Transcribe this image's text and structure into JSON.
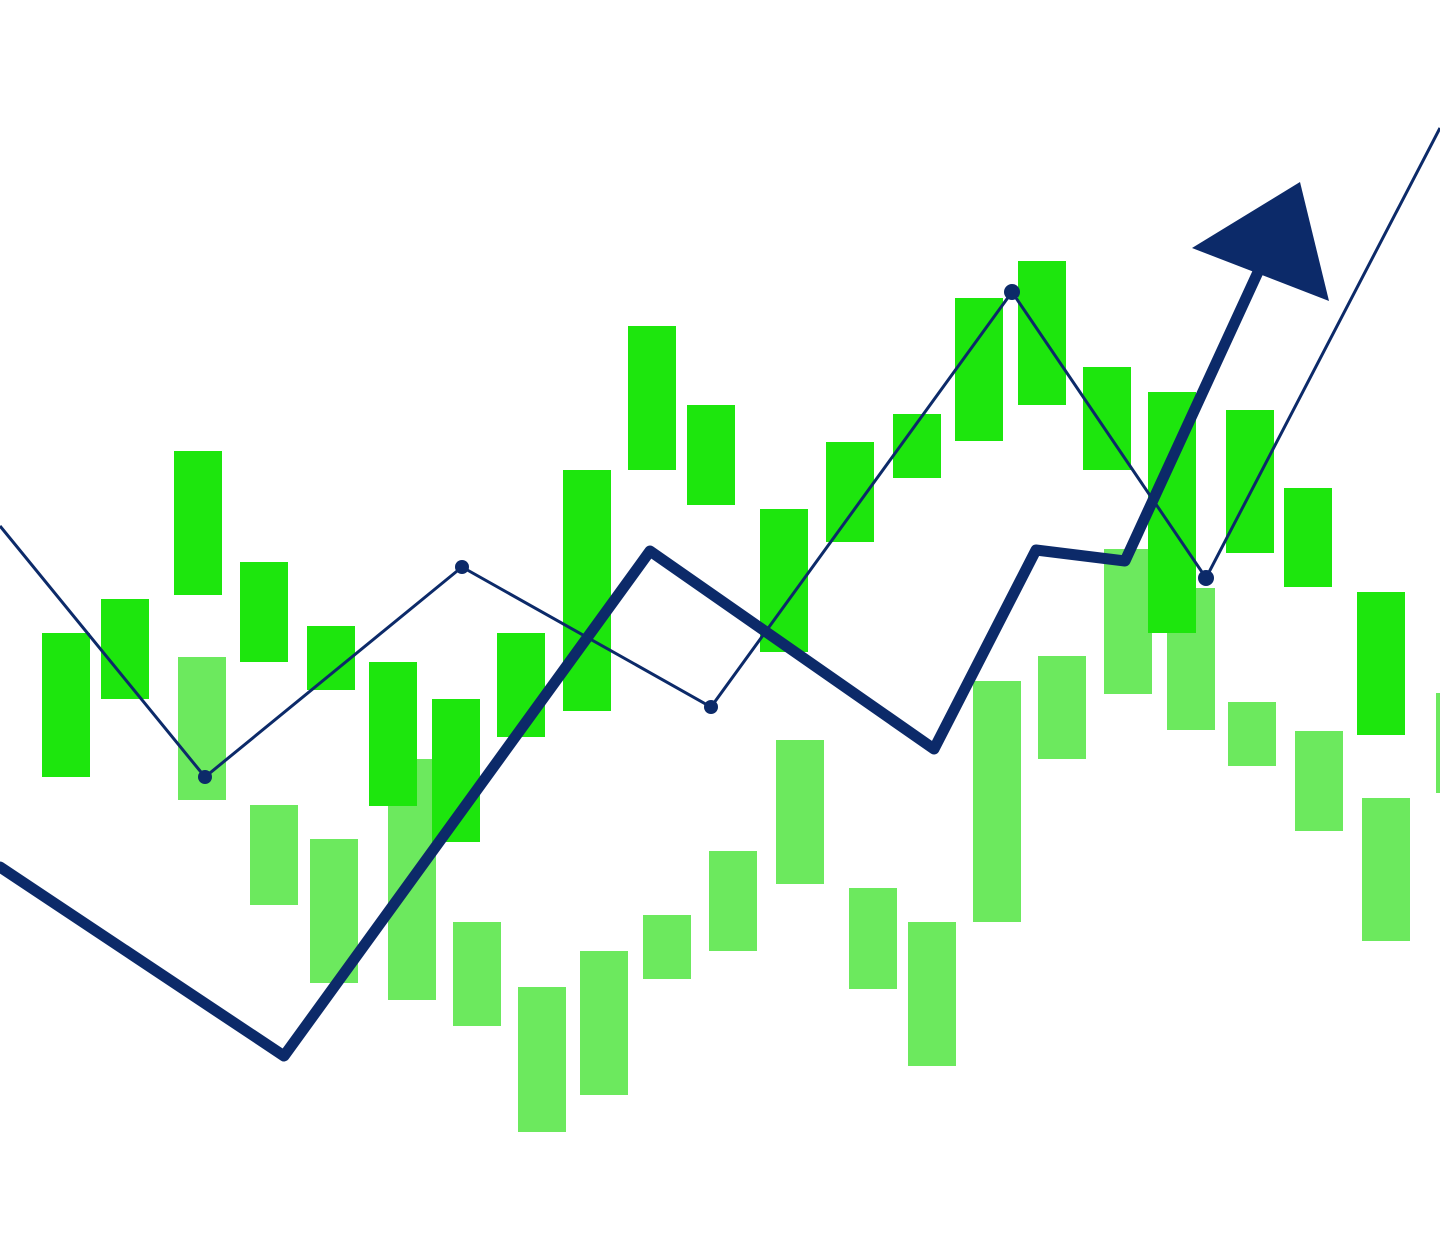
{
  "colors": {
    "background": "#ffffff",
    "front_bar": "#1de60d",
    "back_bar": "#6ce95e",
    "trend_line": "#0c2a69"
  },
  "illustration": {
    "kind": "rising stock market trend graphic",
    "has_text": false,
    "elements": [
      "candlestick-bars",
      "thin-zigzag-line",
      "thick-trend-line",
      "arrowhead"
    ]
  }
}
